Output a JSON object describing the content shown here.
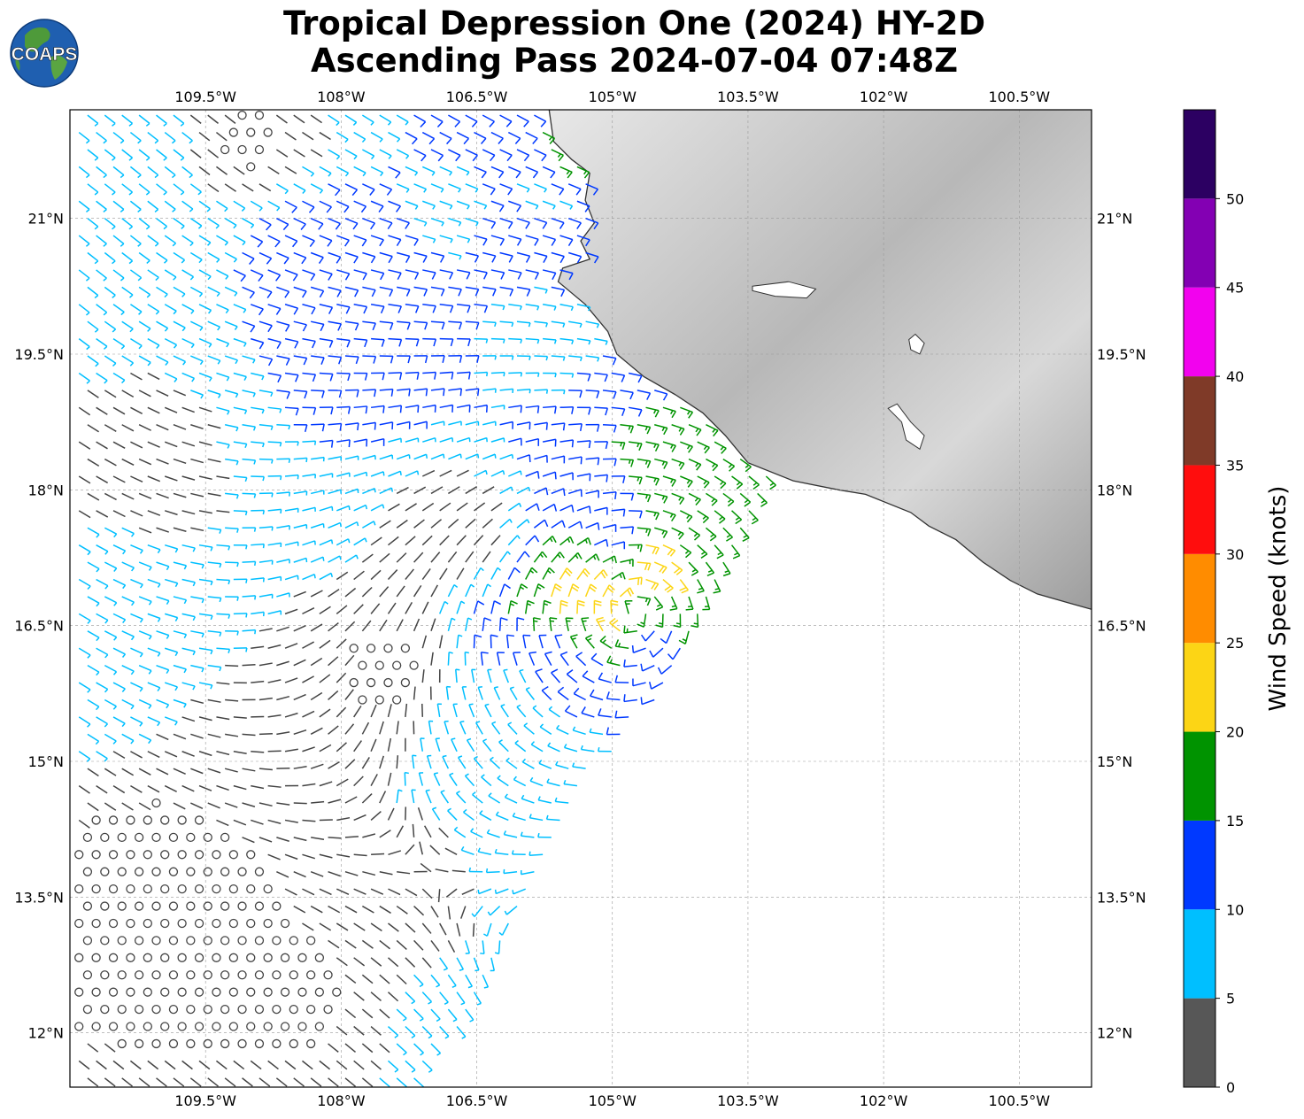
{
  "title": {
    "line1": "Tropical Depression One (2024) HY-2D",
    "line2": "Ascending Pass 2024-07-04 07:48Z"
  },
  "logo": {
    "text": "COAPS",
    "icon": "globe-logo-icon"
  },
  "map": {
    "lon_range": [
      -111.0,
      -99.7
    ],
    "lat_range": [
      11.4,
      22.2
    ],
    "lon_ticks": [
      {
        "value": -109.5,
        "label": "109.5°W"
      },
      {
        "value": -108.0,
        "label": "108°W"
      },
      {
        "value": -106.5,
        "label": "106.5°W"
      },
      {
        "value": -105.0,
        "label": "105°W"
      },
      {
        "value": -103.5,
        "label": "103.5°W"
      },
      {
        "value": -102.0,
        "label": "102°W"
      },
      {
        "value": -100.5,
        "label": "100.5°W"
      }
    ],
    "lat_ticks": [
      {
        "value": 21.0,
        "label": "21°N"
      },
      {
        "value": 19.5,
        "label": "19.5°N"
      },
      {
        "value": 18.0,
        "label": "18°N"
      },
      {
        "value": 16.5,
        "label": "16.5°N"
      },
      {
        "value": 15.0,
        "label": "15°N"
      },
      {
        "value": 13.5,
        "label": "13.5°N"
      },
      {
        "value": 12.0,
        "label": "12°N"
      }
    ],
    "grid": true,
    "coastline": [
      [
        -105.7,
        22.2
      ],
      [
        -105.65,
        21.85
      ],
      [
        -105.45,
        21.65
      ],
      [
        -105.25,
        21.5
      ],
      [
        -105.3,
        21.2
      ],
      [
        -105.2,
        20.95
      ],
      [
        -105.35,
        20.75
      ],
      [
        -105.25,
        20.55
      ],
      [
        -105.55,
        20.45
      ],
      [
        -105.6,
        20.3
      ],
      [
        -105.3,
        20.05
      ],
      [
        -105.05,
        19.75
      ],
      [
        -104.95,
        19.5
      ],
      [
        -104.65,
        19.25
      ],
      [
        -104.3,
        19.05
      ],
      [
        -104.0,
        18.85
      ],
      [
        -103.75,
        18.6
      ],
      [
        -103.5,
        18.3
      ],
      [
        -103.0,
        18.1
      ],
      [
        -102.5,
        18.0
      ],
      [
        -102.2,
        17.95
      ],
      [
        -101.7,
        17.75
      ],
      [
        -101.5,
        17.6
      ],
      [
        -101.2,
        17.45
      ],
      [
        -100.9,
        17.2
      ],
      [
        -100.6,
        17.0
      ],
      [
        -100.3,
        16.85
      ],
      [
        -99.95,
        16.75
      ],
      [
        -99.7,
        16.68
      ]
    ],
    "lakes": [
      {
        "name": "Lago de Chapala",
        "points": [
          [
            -103.45,
            20.25
          ],
          [
            -103.05,
            20.3
          ],
          [
            -102.75,
            20.22
          ],
          [
            -102.85,
            20.12
          ],
          [
            -103.2,
            20.14
          ],
          [
            -103.45,
            20.2
          ]
        ]
      },
      {
        "name": "Lago de Patzcuaro",
        "points": [
          [
            -101.65,
            19.72
          ],
          [
            -101.55,
            19.62
          ],
          [
            -101.6,
            19.5
          ],
          [
            -101.7,
            19.55
          ],
          [
            -101.72,
            19.66
          ]
        ]
      },
      {
        "name": "Presa El Infiernillo",
        "points": [
          [
            -101.95,
            18.9
          ],
          [
            -101.8,
            18.75
          ],
          [
            -101.75,
            18.55
          ],
          [
            -101.6,
            18.45
          ],
          [
            -101.55,
            18.6
          ],
          [
            -101.7,
            18.75
          ],
          [
            -101.85,
            18.95
          ]
        ]
      }
    ],
    "land_color": "#d0d0d0",
    "ocean_color": "#ffffff"
  },
  "wind": {
    "instrument": "HY-2D",
    "units": "knots",
    "center": {
      "lon": -104.75,
      "lat": 16.65
    },
    "calm_color": "#444444",
    "samples": [
      {
        "lon": -110.5,
        "lat": 21.8,
        "speed": 8
      },
      {
        "lon": -110.0,
        "lat": 20.5,
        "speed": 9
      },
      {
        "lon": -109.0,
        "lat": 21.8,
        "speed": 2
      },
      {
        "lon": -108.5,
        "lat": 20.8,
        "speed": 12
      },
      {
        "lon": -107.5,
        "lat": 20.2,
        "speed": 14
      },
      {
        "lon": -106.8,
        "lat": 21.0,
        "speed": 9
      },
      {
        "lon": -106.2,
        "lat": 20.8,
        "speed": 13
      },
      {
        "lon": -105.8,
        "lat": 21.3,
        "speed": 9
      },
      {
        "lon": -105.6,
        "lat": 21.7,
        "speed": 16
      },
      {
        "lon": -107.8,
        "lat": 19.6,
        "speed": 13
      },
      {
        "lon": -108.7,
        "lat": 19.0,
        "speed": 10
      },
      {
        "lon": -110.0,
        "lat": 18.5,
        "speed": 3
      },
      {
        "lon": -106.0,
        "lat": 19.8,
        "speed": 9
      },
      {
        "lon": -105.0,
        "lat": 17.6,
        "speed": 13
      },
      {
        "lon": -104.3,
        "lat": 17.8,
        "speed": 18
      },
      {
        "lon": -103.9,
        "lat": 17.3,
        "speed": 17
      },
      {
        "lon": -104.5,
        "lat": 17.2,
        "speed": 22
      },
      {
        "lon": -105.4,
        "lat": 16.7,
        "speed": 23
      },
      {
        "lon": -105.0,
        "lat": 16.4,
        "speed": 21
      },
      {
        "lon": -105.6,
        "lat": 16.3,
        "speed": 14
      },
      {
        "lon": -104.6,
        "lat": 16.2,
        "speed": 13
      },
      {
        "lon": -105.2,
        "lat": 15.9,
        "speed": 12
      },
      {
        "lon": -106.0,
        "lat": 15.6,
        "speed": 9
      },
      {
        "lon": -105.5,
        "lat": 15.1,
        "speed": 8
      },
      {
        "lon": -106.8,
        "lat": 17.5,
        "speed": 3
      },
      {
        "lon": -107.5,
        "lat": 16.0,
        "speed": 2
      },
      {
        "lon": -108.8,
        "lat": 15.0,
        "speed": 3
      },
      {
        "lon": -109.8,
        "lat": 13.5,
        "speed": 1
      },
      {
        "lon": -108.5,
        "lat": 12.5,
        "speed": 2
      },
      {
        "lon": -107.0,
        "lat": 13.5,
        "speed": 3
      },
      {
        "lon": -106.5,
        "lat": 12.3,
        "speed": 8
      },
      {
        "lon": -106.0,
        "lat": 13.8,
        "speed": 8
      },
      {
        "lon": -105.5,
        "lat": 14.5,
        "speed": 7
      },
      {
        "lon": -110.5,
        "lat": 16.5,
        "speed": 7
      }
    ]
  },
  "colorbar": {
    "title": "Wind Speed (knots)",
    "min": 0,
    "max": 55,
    "bins": [
      {
        "from": 0,
        "to": 5,
        "color": "#575757"
      },
      {
        "from": 5,
        "to": 10,
        "color": "#00bfff"
      },
      {
        "from": 10,
        "to": 15,
        "color": "#0039ff"
      },
      {
        "from": 15,
        "to": 20,
        "color": "#009300"
      },
      {
        "from": 20,
        "to": 25,
        "color": "#fcd515"
      },
      {
        "from": 25,
        "to": 30,
        "color": "#ff8c00"
      },
      {
        "from": 30,
        "to": 35,
        "color": "#ff0d0d"
      },
      {
        "from": 35,
        "to": 40,
        "color": "#7f3a28"
      },
      {
        "from": 40,
        "to": 45,
        "color": "#f202ee"
      },
      {
        "from": 45,
        "to": 50,
        "color": "#8300b3"
      },
      {
        "from": 50,
        "to": 55,
        "color": "#2c0062"
      }
    ],
    "tick_labels": [
      "0",
      "5",
      "10",
      "15",
      "20",
      "25",
      "30",
      "35",
      "40",
      "45",
      "50"
    ]
  }
}
